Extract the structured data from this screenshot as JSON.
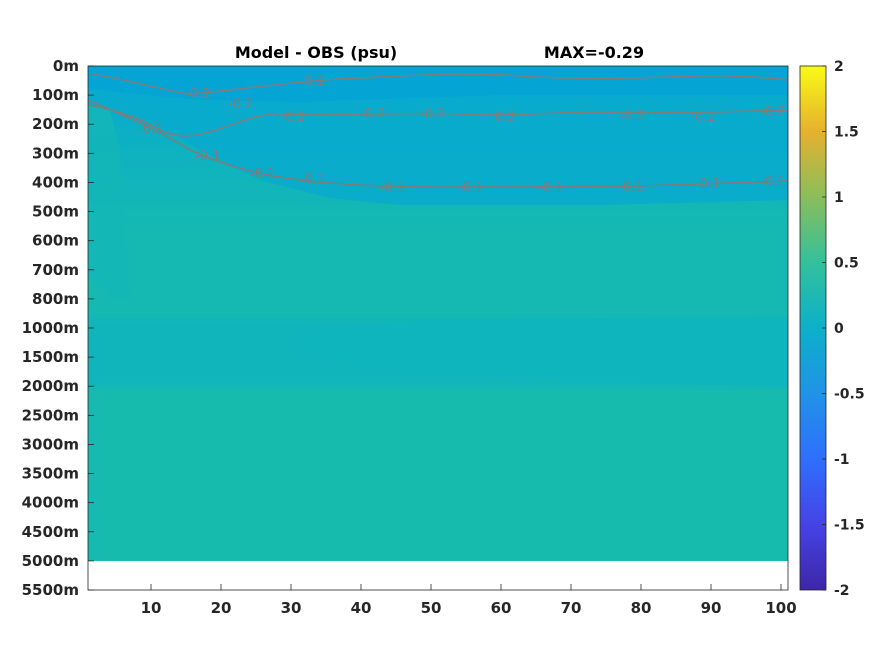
{
  "chart_data": {
    "type": "heatmap",
    "title": "Model - OBS (psu)",
    "max_label": "MAX=-0.29",
    "x_ticks": [
      10,
      20,
      30,
      40,
      50,
      60,
      70,
      80,
      90,
      100
    ],
    "xlim": [
      1,
      101
    ],
    "y_tick_labels": [
      "0m",
      "100m",
      "200m",
      "300m",
      "400m",
      "500m",
      "600m",
      "700m",
      "800m",
      "1000m",
      "1500m",
      "2000m",
      "2500m",
      "3000m",
      "3500m",
      "4000m",
      "4500m",
      "5000m",
      "5500m"
    ],
    "colorbar": {
      "range": [
        -2,
        2
      ],
      "ticks": [
        2,
        1.5,
        1,
        0.5,
        0,
        -0.5,
        -1,
        -1.5,
        -2
      ],
      "colormap": "parula"
    },
    "field_colors": {
      "near_surface": "#08a9cf",
      "intermediate": "#14b8b4",
      "deep": "#18bcab",
      "mid_depth_band": "#11b6bd"
    },
    "contours": [
      {
        "level": -0.2,
        "labels": [
          "-0.2",
          "-0.2",
          "-0.2",
          "-0.2",
          "-0.2",
          "-0.2",
          "-0.2",
          "-0.2",
          "-0.2",
          "-0.2"
        ]
      },
      {
        "level": -0.1,
        "labels": [
          "-0.1",
          "-0.1",
          "-0.1",
          "-0.1",
          "-0.1",
          "-0.1",
          "-0.1",
          "-0.1",
          "-0.1",
          "-0.1"
        ]
      }
    ]
  }
}
